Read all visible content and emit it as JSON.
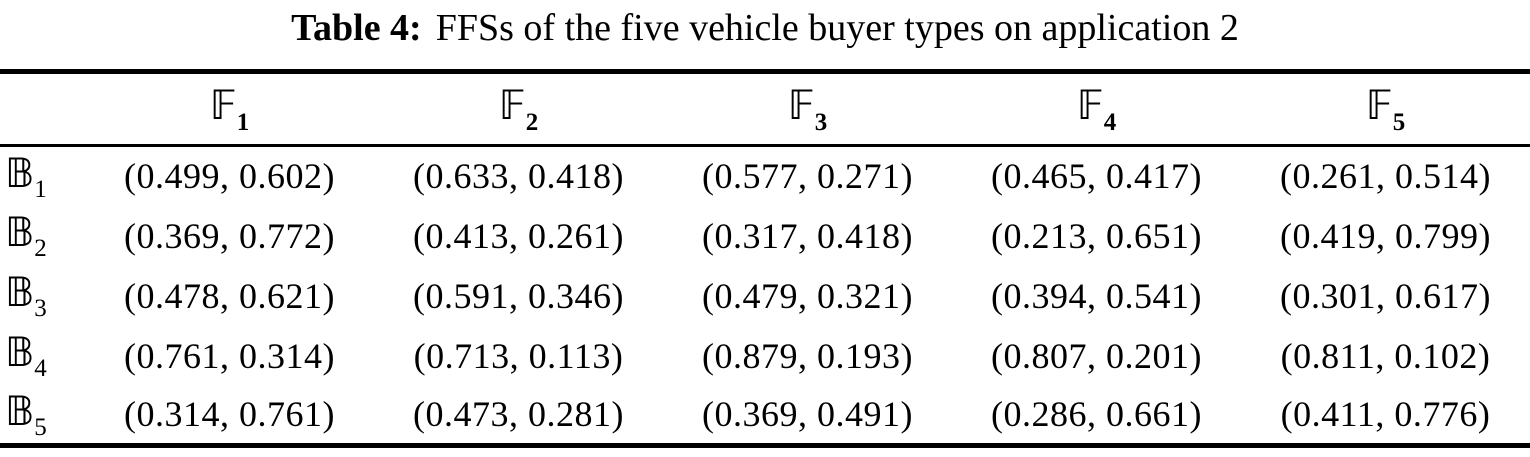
{
  "caption": {
    "label": "Table 4:",
    "text": "FFSs of the five vehicle buyer types on application 2"
  },
  "colors": {
    "text": "#000000",
    "background": "#ffffff",
    "rule": "#000000"
  },
  "table": {
    "columns": [
      {
        "base": "𝔽",
        "sub": "1"
      },
      {
        "base": "𝔽",
        "sub": "2"
      },
      {
        "base": "𝔽",
        "sub": "3"
      },
      {
        "base": "𝔽",
        "sub": "4"
      },
      {
        "base": "𝔽",
        "sub": "5"
      }
    ],
    "rows": [
      {
        "label": {
          "base": "𝔹",
          "sub": "1"
        },
        "cells": [
          "(0.499, 0.602)",
          "(0.633, 0.418)",
          "(0.577, 0.271)",
          "(0.465, 0.417)",
          "(0.261, 0.514)"
        ]
      },
      {
        "label": {
          "base": "𝔹",
          "sub": "2"
        },
        "cells": [
          "(0.369, 0.772)",
          "(0.413, 0.261)",
          "(0.317, 0.418)",
          "(0.213, 0.651)",
          "(0.419, 0.799)"
        ]
      },
      {
        "label": {
          "base": "𝔹",
          "sub": "3"
        },
        "cells": [
          "(0.478, 0.621)",
          "(0.591, 0.346)",
          "(0.479, 0.321)",
          "(0.394, 0.541)",
          "(0.301, 0.617)"
        ]
      },
      {
        "label": {
          "base": "𝔹",
          "sub": "4"
        },
        "cells": [
          "(0.761, 0.314)",
          "(0.713, 0.113)",
          "(0.879, 0.193)",
          "(0.807, 0.201)",
          "(0.811, 0.102)"
        ]
      },
      {
        "label": {
          "base": "𝔹",
          "sub": "5"
        },
        "cells": [
          "(0.314, 0.761)",
          "(0.473, 0.281)",
          "(0.369, 0.491)",
          "(0.286, 0.661)",
          "(0.411, 0.776)"
        ]
      }
    ]
  }
}
